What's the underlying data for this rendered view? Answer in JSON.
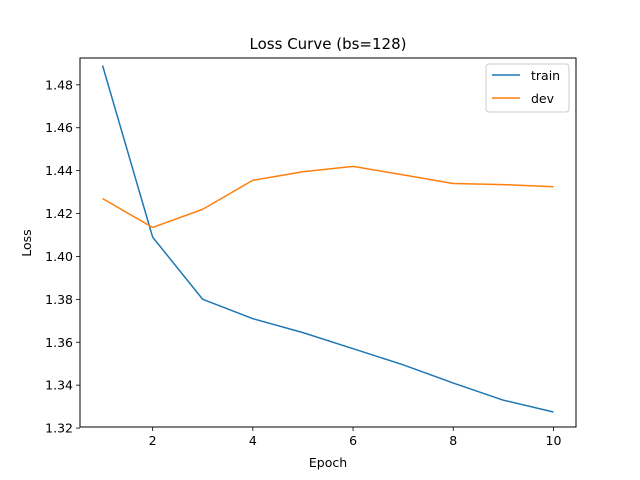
{
  "chart_data": {
    "type": "line",
    "title": "Loss Curve (bs=128)",
    "xlabel": "Epoch",
    "ylabel": "Loss",
    "x": [
      1,
      2,
      3,
      4,
      5,
      6,
      7,
      8,
      9,
      10
    ],
    "xlim": [
      0.55,
      10.45
    ],
    "ylim": [
      1.3205,
      1.4925
    ],
    "xticks": [
      2,
      4,
      6,
      8,
      10
    ],
    "yticks": [
      1.32,
      1.34,
      1.36,
      1.38,
      1.4,
      1.42,
      1.44,
      1.46,
      1.48
    ],
    "grid": false,
    "legend_position": "top-right",
    "series": [
      {
        "name": "train",
        "color": "#1f77b4",
        "values": [
          1.489,
          1.409,
          1.38,
          1.371,
          1.3645,
          1.357,
          1.3495,
          1.341,
          1.333,
          1.3275
        ]
      },
      {
        "name": "dev",
        "color": "#ff7f0e",
        "values": [
          1.427,
          1.4135,
          1.422,
          1.4355,
          1.4395,
          1.442,
          1.438,
          1.434,
          1.4335,
          1.4325
        ]
      }
    ]
  }
}
